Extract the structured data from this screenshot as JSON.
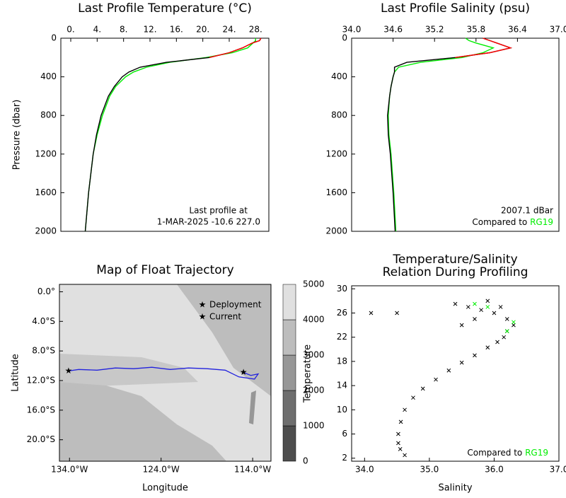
{
  "chart_data": [
    {
      "type": "profile",
      "title": "Last Profile Temperature (°C)",
      "ylabel": "Pressure (dbar)",
      "xlim": [
        -1.5,
        30
      ],
      "xticks": [
        {
          "value": 0,
          "label": "0."
        },
        {
          "value": 4,
          "label": "4."
        },
        {
          "value": 8,
          "label": "8."
        },
        {
          "value": 12,
          "label": "12."
        },
        {
          "value": 16,
          "label": "16."
        },
        {
          "value": 20,
          "label": "20."
        },
        {
          "value": 24,
          "label": "24."
        },
        {
          "value": 28,
          "label": "28."
        }
      ],
      "ylim": [
        2000,
        0
      ],
      "yticks": [
        0,
        400,
        800,
        1200,
        1600,
        2000
      ],
      "annotations": [
        "Last profile at",
        "1-MAR-2025   -10.6 227.0"
      ],
      "y": [
        0,
        25,
        50,
        100,
        150,
        200,
        250,
        300,
        350,
        400,
        500,
        600,
        800,
        1000,
        1200,
        1600,
        2000
      ],
      "series": [
        {
          "color": "#00ee00",
          "values": [
            28.0,
            28.0,
            27.6,
            26.8,
            24.5,
            20.5,
            15.0,
            11.5,
            9.5,
            8.3,
            6.8,
            5.9,
            4.8,
            4.0,
            3.4,
            2.7,
            2.2
          ]
        },
        {
          "color": "#000000",
          "values": [
            28.8,
            28.6,
            27.5,
            26.0,
            24.0,
            21.0,
            14.5,
            10.5,
            8.8,
            7.8,
            6.6,
            5.7,
            4.6,
            3.9,
            3.4,
            2.7,
            2.2
          ]
        },
        {
          "color": "#ff0000",
          "values": [
            28.8,
            28.6,
            27.5,
            26.0,
            24.0,
            21.0,
            null,
            null,
            null,
            null,
            null,
            null,
            null,
            null,
            null,
            null,
            null
          ]
        }
      ]
    },
    {
      "type": "profile",
      "title": "Last Profile Salinity (psu)",
      "xlim": [
        34.0,
        37.0
      ],
      "xticks": [
        {
          "value": 34.0,
          "label": "34.0"
        },
        34.6,
        35.2,
        35.8,
        36.4,
        {
          "value": 37.0,
          "label": "37.0"
        }
      ],
      "ylim": [
        2000,
        0
      ],
      "yticks": [
        0,
        400,
        800,
        1200,
        1600,
        2000
      ],
      "annotations": [
        "2007.1 dBar",
        "Compared to"
      ],
      "reference": "RG19",
      "reference_color": "#00ee00",
      "y": [
        0,
        25,
        50,
        100,
        150,
        200,
        250,
        300,
        350,
        400,
        500,
        600,
        800,
        1000,
        1200,
        1600,
        2000
      ],
      "series": [
        {
          "color": "#00ee00",
          "values": [
            35.65,
            35.7,
            35.8,
            36.05,
            35.9,
            35.6,
            35.0,
            34.68,
            34.62,
            34.6,
            34.57,
            34.55,
            34.53,
            34.54,
            34.57,
            34.61,
            34.64
          ]
        },
        {
          "color": "#000000",
          "values": [
            35.9,
            36.0,
            36.1,
            36.3,
            36.0,
            35.5,
            34.8,
            34.62,
            34.62,
            34.6,
            34.57,
            34.55,
            34.52,
            34.53,
            34.56,
            34.6,
            34.63
          ]
        },
        {
          "color": "#ff0000",
          "values": [
            35.9,
            36.0,
            36.1,
            36.3,
            36.0,
            35.5,
            null,
            null,
            null,
            null,
            null,
            null,
            null,
            null,
            null,
            null,
            null
          ]
        }
      ]
    },
    {
      "type": "map",
      "title": "Map of Float Trajectory",
      "xlabel": "Longitude",
      "ylabel": "Latitude",
      "xlim": [
        -135.1,
        -112.0
      ],
      "xticks": [
        {
          "value": -134,
          "label": "134.0°W"
        },
        {
          "value": -124,
          "label": "124.0°W"
        },
        {
          "value": -114,
          "label": "114.0°W"
        }
      ],
      "ylim": [
        -22.9,
        1.0
      ],
      "yticks": [
        {
          "value": 0,
          "label": "0.0°"
        },
        {
          "value": -4,
          "label": "4.0°S"
        },
        {
          "value": -8,
          "label": "8.0°S"
        },
        {
          "value": -12,
          "label": "12.0°S"
        },
        {
          "value": -16,
          "label": "16.0°S"
        },
        {
          "value": -20,
          "label": "20.0°S"
        }
      ],
      "x": [
        -115.0,
        -114.2,
        -113.4,
        -113.8,
        -115.5,
        -117.0,
        -119.0,
        -121.0,
        -123.0,
        -125.0,
        -127.0,
        -129.0,
        -131.0,
        -133.0,
        -134.1
      ],
      "values": [
        -10.9,
        -11.3,
        -11.1,
        -11.8,
        -11.5,
        -10.6,
        -10.4,
        -10.3,
        -10.5,
        -10.2,
        -10.4,
        -10.3,
        -10.6,
        -10.5,
        -10.7
      ],
      "color": "#2222dd",
      "legend": [
        {
          "name": "Deployment",
          "color": "#00ee00"
        },
        {
          "name": "Current",
          "color": "#ff2222"
        }
      ],
      "colorbar": {
        "ticks": [
          0,
          1000,
          2000,
          3000,
          4000,
          5000
        ],
        "colors": [
          "#4d4d4d",
          "#6e6e6e",
          "#979797",
          "#bdbdbd",
          "#e0e0e0"
        ]
      }
    },
    {
      "type": "scatter",
      "title": "Temperature/Salinity",
      "subtitle": "Relation During Profiling",
      "xlabel": "Salinity",
      "ylabel": "Temperature",
      "xlim": [
        33.8,
        37.0
      ],
      "xticks": [
        {
          "value": 34.0,
          "label": "34.0"
        },
        {
          "value": 35.0,
          "label": "35.0"
        },
        {
          "value": 36.0,
          "label": "36.0"
        },
        {
          "value": 37.0,
          "label": "37.0"
        }
      ],
      "ylim": [
        1.5,
        30.5
      ],
      "yticks": [
        2,
        6,
        10,
        14,
        18,
        22,
        26,
        30
      ],
      "annotations": [
        "Compared to"
      ],
      "reference": "RG19",
      "reference_color": "#00ee00",
      "series": [
        {
          "color": "#000000",
          "x": [
            34.62,
            34.55,
            34.52,
            34.52,
            34.56,
            34.62,
            34.75,
            34.9,
            35.1,
            35.3,
            35.5,
            35.7,
            35.9,
            36.05,
            36.15,
            36.2,
            36.3,
            36.2,
            36.0,
            35.8,
            35.6,
            35.4,
            35.9,
            36.1,
            35.7,
            35.5,
            34.1,
            34.5
          ],
          "values": [
            2.5,
            3.5,
            4.5,
            6,
            8,
            10,
            12,
            13.5,
            15,
            16.5,
            17.8,
            19,
            20.3,
            21.2,
            22,
            23,
            24,
            25,
            26,
            26.5,
            27,
            27.5,
            28,
            27,
            25,
            24,
            26,
            26
          ]
        },
        {
          "color": "#00ee00",
          "x": [
            35.7,
            35.9,
            36.2,
            36.3
          ],
          "values": [
            27.5,
            27,
            23,
            24.5
          ]
        }
      ]
    }
  ]
}
